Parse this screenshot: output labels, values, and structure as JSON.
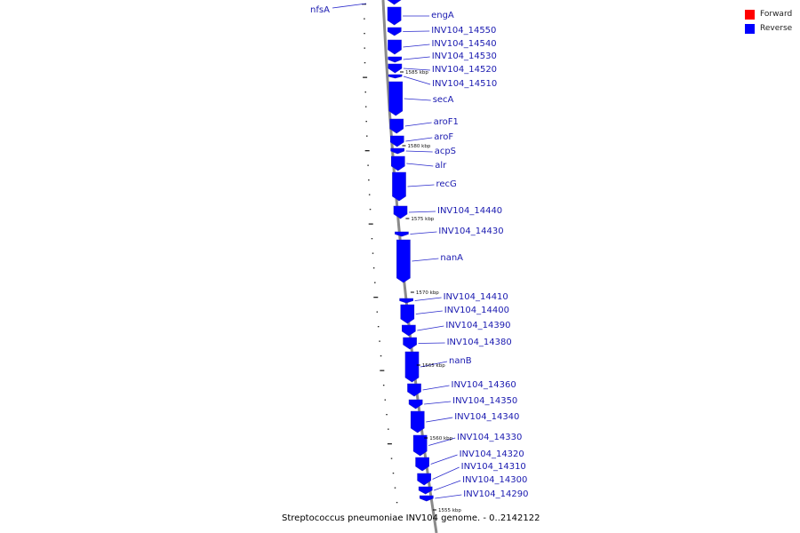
{
  "legend": [
    {
      "label": "Forward",
      "color": "#ff0000"
    },
    {
      "label": "Reverse",
      "color": "#0000ff"
    }
  ],
  "caption": "Streptococcus pneumoniae INV104 genome. - 0..2142122",
  "genes": [
    {
      "name": "nfsA",
      "strand": "reverse"
    },
    {
      "name": "engA",
      "strand": "reverse"
    },
    {
      "name": "INV104_14550",
      "strand": "reverse"
    },
    {
      "name": "INV104_14540",
      "strand": "reverse"
    },
    {
      "name": "INV104_14530",
      "strand": "reverse"
    },
    {
      "name": "INV104_14520",
      "strand": "reverse"
    },
    {
      "name": "INV104_14510",
      "strand": "reverse"
    },
    {
      "name": "secA",
      "strand": "reverse"
    },
    {
      "name": "aroF1",
      "strand": "reverse"
    },
    {
      "name": "aroF",
      "strand": "reverse"
    },
    {
      "name": "acpS",
      "strand": "reverse"
    },
    {
      "name": "alr",
      "strand": "reverse"
    },
    {
      "name": "recG",
      "strand": "reverse"
    },
    {
      "name": "INV104_14440",
      "strand": "reverse"
    },
    {
      "name": "INV104_14430",
      "strand": "reverse"
    },
    {
      "name": "nanA",
      "strand": "reverse"
    },
    {
      "name": "INV104_14410",
      "strand": "reverse"
    },
    {
      "name": "INV104_14400",
      "strand": "reverse"
    },
    {
      "name": "INV104_14390",
      "strand": "reverse"
    },
    {
      "name": "INV104_14380",
      "strand": "reverse"
    },
    {
      "name": "nanB",
      "strand": "reverse"
    },
    {
      "name": "INV104_14360",
      "strand": "reverse"
    },
    {
      "name": "INV104_14350",
      "strand": "reverse"
    },
    {
      "name": "INV104_14340",
      "strand": "reverse"
    },
    {
      "name": "INV104_14330",
      "strand": "reverse"
    },
    {
      "name": "INV104_14320",
      "strand": "reverse"
    },
    {
      "name": "INV104_14310",
      "strand": "reverse"
    },
    {
      "name": "INV104_14300",
      "strand": "reverse"
    },
    {
      "name": "INV104_14290",
      "strand": "reverse"
    }
  ],
  "ticks": [
    "1585 kbp",
    "1580 kbp",
    "1575 kbp",
    "1570 kbp",
    "1565 kbp",
    "1560 kbp",
    "1555 kbp"
  ]
}
